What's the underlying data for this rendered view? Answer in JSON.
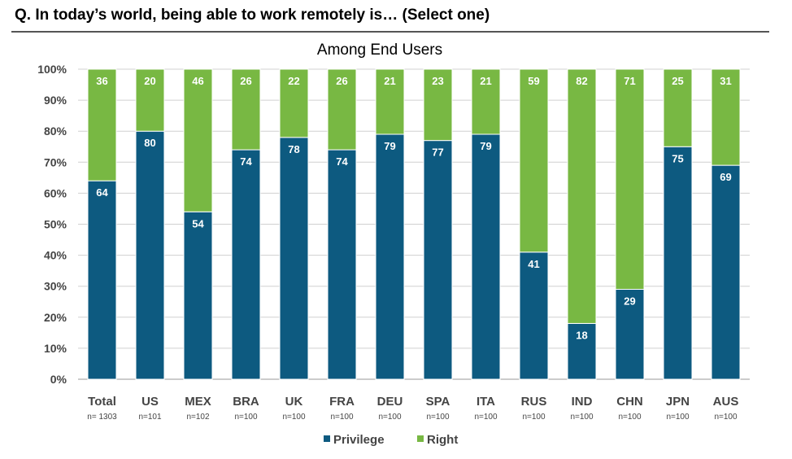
{
  "question": "Q. In today’s world, being able to work remotely is… (Select one)",
  "chart_data": {
    "type": "bar",
    "stacked": true,
    "title": "Among End Users",
    "categories": [
      "Total",
      "US",
      "MEX",
      "BRA",
      "UK",
      "FRA",
      "DEU",
      "SPA",
      "ITA",
      "RUS",
      "IND",
      "CHN",
      "JPN",
      "AUS"
    ],
    "sample_sizes": [
      "n= 1303",
      "n=101",
      "n=102",
      "n=100",
      "n=100",
      "n=100",
      "n=100",
      "n=100",
      "n=100",
      "n=100",
      "n=100",
      "n=100",
      "n=100",
      "n=100"
    ],
    "series": [
      {
        "name": "Privilege",
        "color": "#0d5a80",
        "values": [
          64,
          80,
          54,
          74,
          78,
          74,
          79,
          77,
          79,
          41,
          18,
          29,
          75,
          69
        ]
      },
      {
        "name": "Right",
        "color": "#78b843",
        "values": [
          36,
          20,
          46,
          26,
          22,
          26,
          21,
          23,
          21,
          59,
          82,
          71,
          25,
          31
        ]
      }
    ],
    "ylim": [
      0,
      100
    ],
    "yticks": [
      "0%",
      "10%",
      "20%",
      "30%",
      "40%",
      "50%",
      "60%",
      "70%",
      "80%",
      "90%",
      "100%"
    ],
    "grid": true,
    "legend_position": "bottom"
  }
}
